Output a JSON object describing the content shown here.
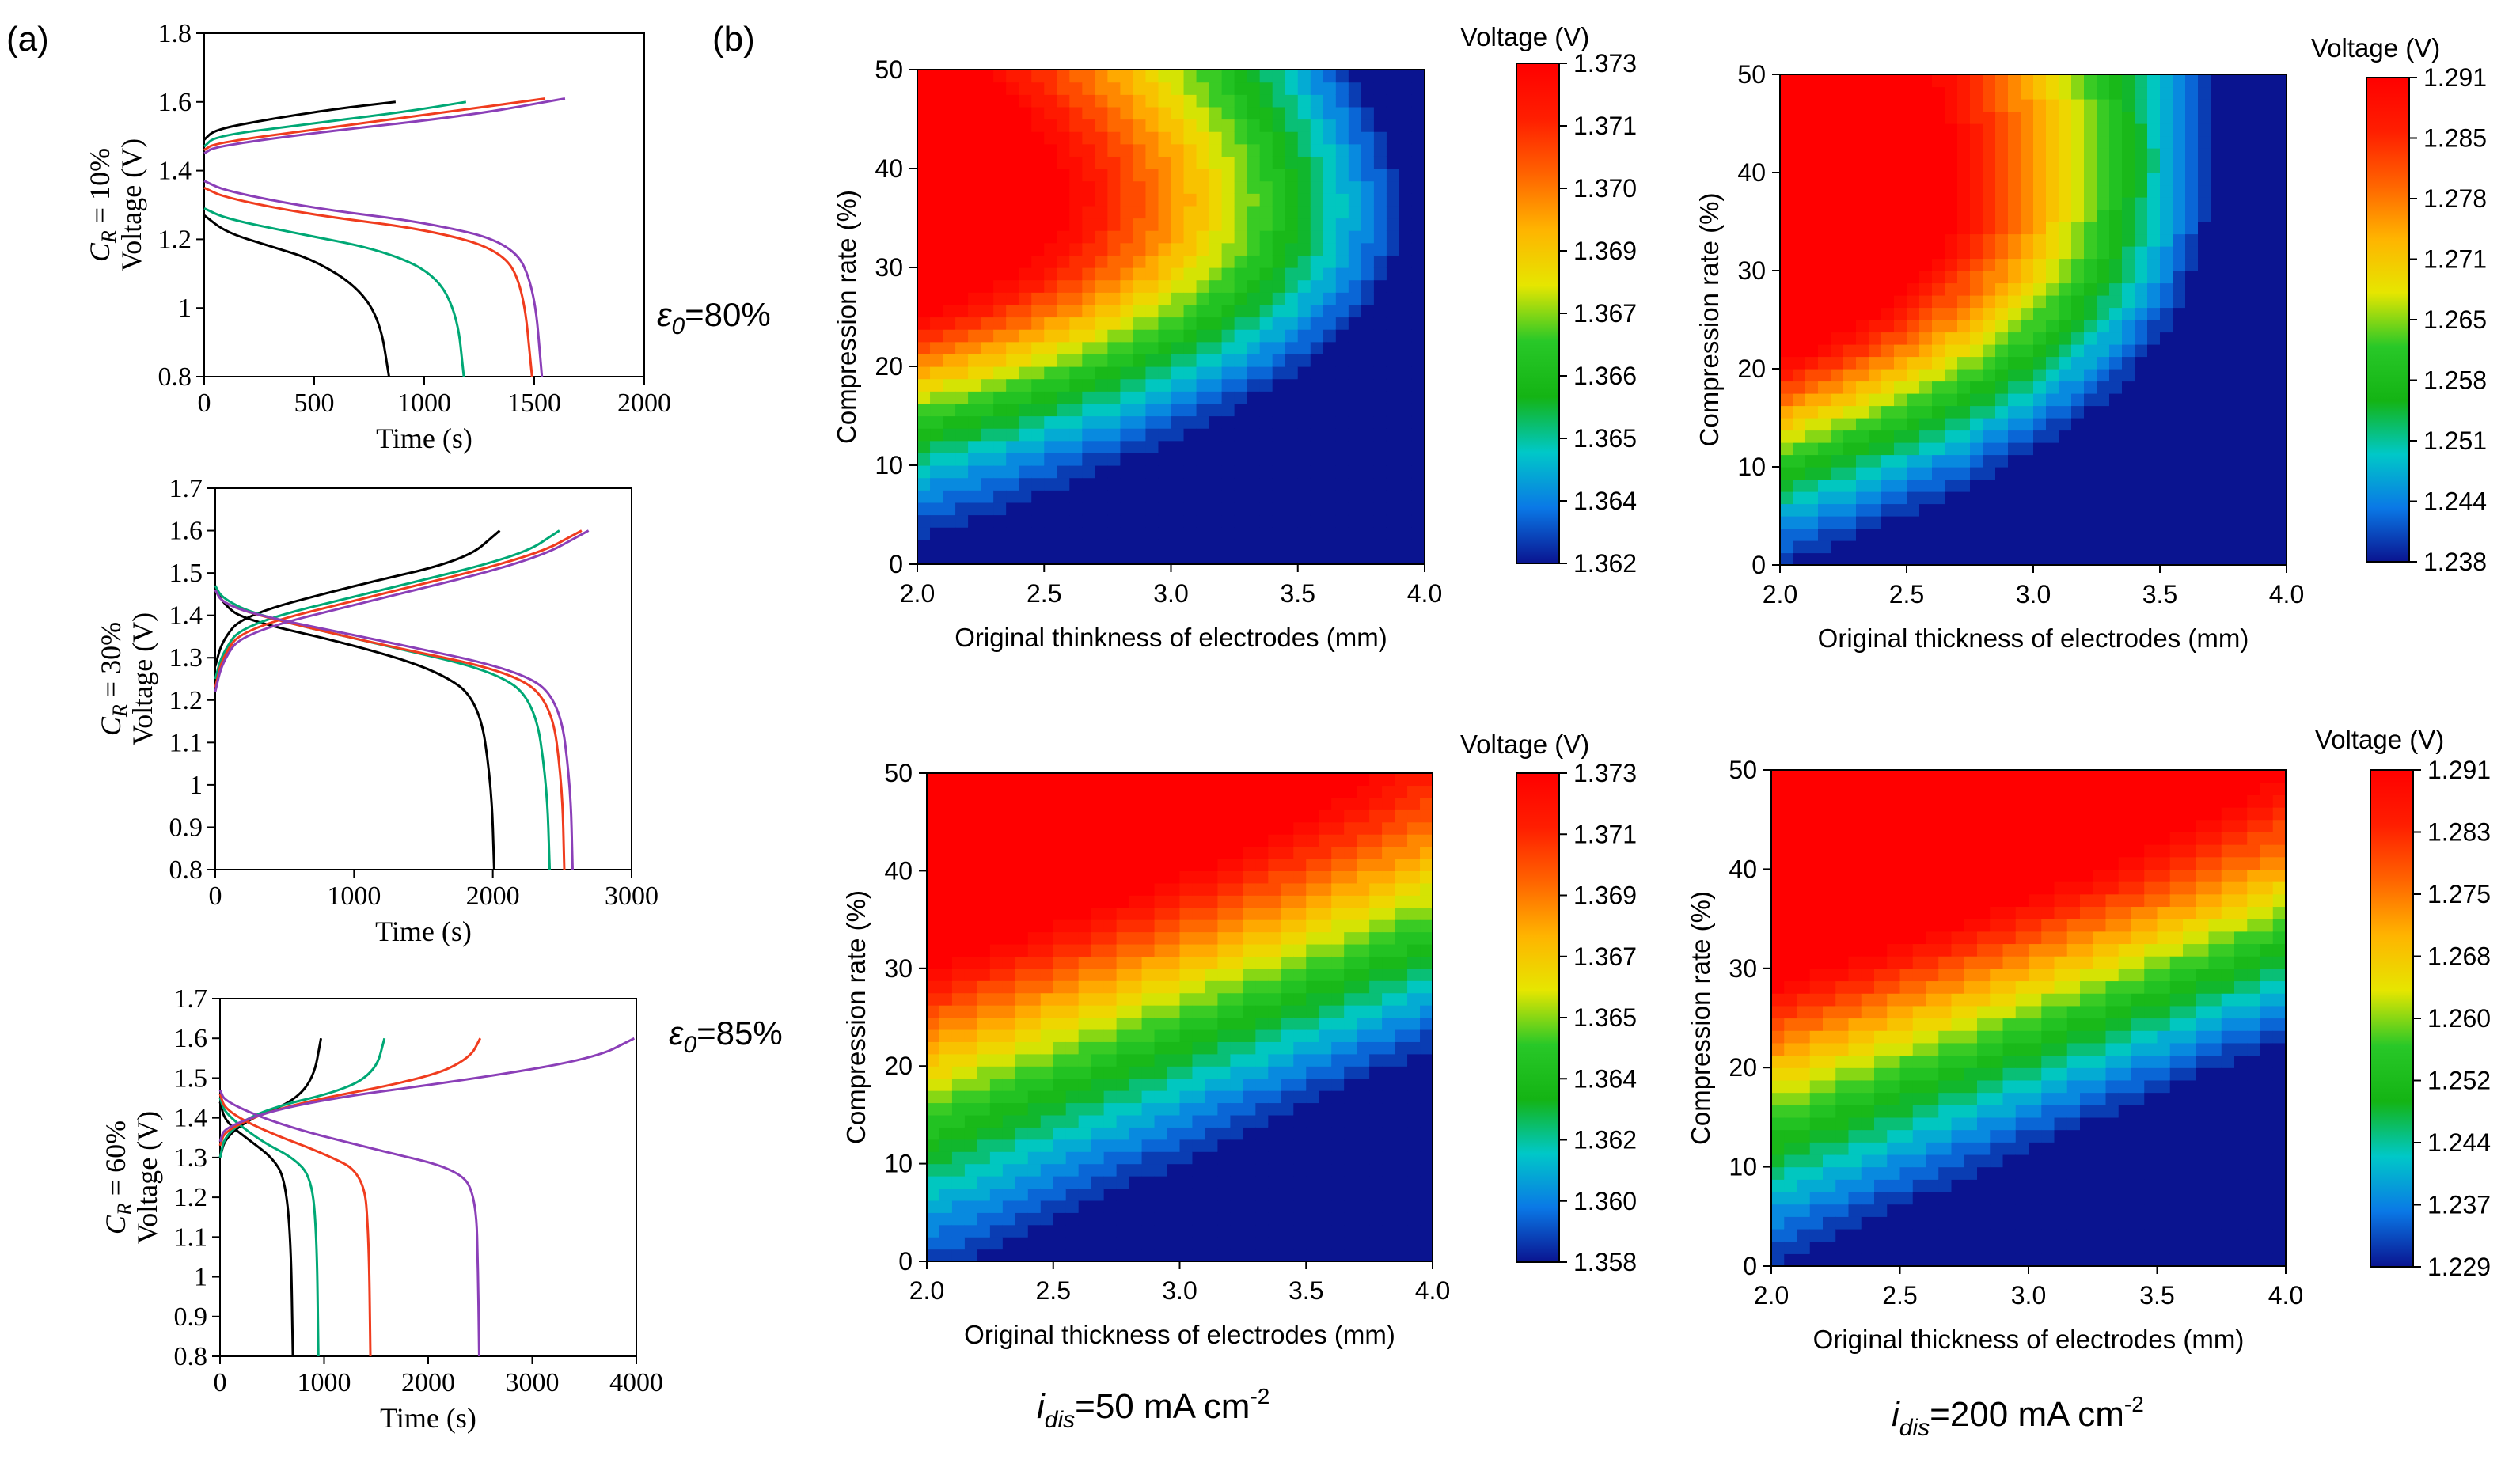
{
  "panel_labels": {
    "a": "(a)",
    "b": "(b)"
  },
  "annotations": {
    "eps80_sym": "ε",
    "eps80_sub": "0",
    "eps80_val": "=80%",
    "eps85_sym": "ε",
    "eps85_sub": "0",
    "eps85_val": "=85%",
    "i50_pre": "i",
    "i50_sub": "dis",
    "i50_mid": "=50 mA cm",
    "i50_sup": "-2",
    "i200_pre": "i",
    "i200_sub": "dis",
    "i200_mid": "=200 mA cm",
    "i200_sup": "-2"
  },
  "colors": {
    "black": "#000000",
    "green": "#00a875",
    "orange": "#f03c1e",
    "purple": "#8b3fb8",
    "contour_stops": [
      "#0a1490",
      "#0a78e6",
      "#00c8c8",
      "#14b414",
      "#28c828",
      "#e6e600",
      "#ffb400",
      "#ff6400",
      "#ff1e00",
      "#ff0000"
    ]
  },
  "chart_data": [
    {
      "id": "a1",
      "type": "line",
      "ylabel_cr": "C",
      "ylabel_cr_sub": "R",
      "ylabel_cr_val": " = 10%",
      "ylabel": "Voltage (V)",
      "xlabel": "Time (s)",
      "xlim": [
        0,
        2000
      ],
      "ylim": [
        0.8,
        1.8
      ],
      "xticks": [
        "0",
        "500",
        "1000",
        "1500",
        "2000"
      ],
      "yticks": [
        "0.8",
        "1",
        "1.2",
        "1.4",
        "1.6",
        "1.8"
      ],
      "series": [
        {
          "color": "#000000",
          "charge": [
            [
              0,
              1.49
            ],
            [
              50,
              1.52
            ],
            [
              300,
              1.55
            ],
            [
              600,
              1.58
            ],
            [
              870,
              1.6
            ]
          ],
          "discharge": [
            [
              0,
              1.27
            ],
            [
              100,
              1.22
            ],
            [
              300,
              1.18
            ],
            [
              500,
              1.14
            ],
            [
              700,
              1.06
            ],
            [
              800,
              0.96
            ],
            [
              840,
              0.8
            ]
          ]
        },
        {
          "color": "#00a875",
          "charge": [
            [
              0,
              1.47
            ],
            [
              50,
              1.5
            ],
            [
              400,
              1.53
            ],
            [
              900,
              1.57
            ],
            [
              1190,
              1.6
            ]
          ],
          "discharge": [
            [
              0,
              1.29
            ],
            [
              100,
              1.26
            ],
            [
              400,
              1.22
            ],
            [
              800,
              1.17
            ],
            [
              1050,
              1.1
            ],
            [
              1150,
              0.98
            ],
            [
              1180,
              0.8
            ]
          ]
        },
        {
          "color": "#f03c1e",
          "charge": [
            [
              0,
              1.46
            ],
            [
              50,
              1.48
            ],
            [
              500,
              1.52
            ],
            [
              1100,
              1.57
            ],
            [
              1550,
              1.61
            ]
          ],
          "discharge": [
            [
              0,
              1.35
            ],
            [
              100,
              1.32
            ],
            [
              500,
              1.27
            ],
            [
              1000,
              1.23
            ],
            [
              1350,
              1.17
            ],
            [
              1450,
              1.06
            ],
            [
              1490,
              0.8
            ]
          ]
        },
        {
          "color": "#8b3fb8",
          "charge": [
            [
              0,
              1.45
            ],
            [
              50,
              1.47
            ],
            [
              500,
              1.51
            ],
            [
              1200,
              1.56
            ],
            [
              1640,
              1.61
            ]
          ],
          "discharge": [
            [
              0,
              1.37
            ],
            [
              100,
              1.34
            ],
            [
              500,
              1.29
            ],
            [
              1000,
              1.25
            ],
            [
              1400,
              1.19
            ],
            [
              1500,
              1.06
            ],
            [
              1535,
              0.8
            ]
          ]
        }
      ]
    },
    {
      "id": "a2",
      "type": "line",
      "ylabel_cr": "C",
      "ylabel_cr_sub": "R",
      "ylabel_cr_val": " = 30%",
      "ylabel": "Voltage (V)",
      "xlabel": "Time (s)",
      "xlim": [
        0,
        3000
      ],
      "ylim": [
        0.8,
        1.7
      ],
      "xticks": [
        "0",
        "1000",
        "2000",
        "3000"
      ],
      "yticks": [
        "0.8",
        "0.9",
        "1",
        "1.1",
        "1.2",
        "1.3",
        "1.4",
        "1.5",
        "1.6",
        "1.7"
      ],
      "series": [
        {
          "color": "#000000",
          "charge": [
            [
              0,
              1.28
            ],
            [
              50,
              1.34
            ],
            [
              200,
              1.4
            ],
            [
              1000,
              1.47
            ],
            [
              1800,
              1.53
            ],
            [
              2050,
              1.6
            ]
          ],
          "discharge": [
            [
              0,
              1.47
            ],
            [
              50,
              1.43
            ],
            [
              200,
              1.39
            ],
            [
              1000,
              1.33
            ],
            [
              1600,
              1.27
            ],
            [
              1900,
              1.2
            ],
            [
              1990,
              1.0
            ],
            [
              2010,
              0.8
            ]
          ]
        },
        {
          "color": "#00a875",
          "charge": [
            [
              0,
              1.25
            ],
            [
              50,
              1.31
            ],
            [
              200,
              1.38
            ],
            [
              1200,
              1.46
            ],
            [
              2200,
              1.54
            ],
            [
              2480,
              1.6
            ]
          ],
          "discharge": [
            [
              0,
              1.47
            ],
            [
              50,
              1.44
            ],
            [
              300,
              1.4
            ],
            [
              1200,
              1.33
            ],
            [
              2000,
              1.27
            ],
            [
              2300,
              1.2
            ],
            [
              2390,
              1.0
            ],
            [
              2410,
              0.8
            ]
          ]
        },
        {
          "color": "#f03c1e",
          "charge": [
            [
              0,
              1.23
            ],
            [
              50,
              1.3
            ],
            [
              200,
              1.37
            ],
            [
              1200,
              1.45
            ],
            [
              2300,
              1.54
            ],
            [
              2640,
              1.6
            ]
          ],
          "discharge": [
            [
              0,
              1.46
            ],
            [
              50,
              1.43
            ],
            [
              300,
              1.4
            ],
            [
              1200,
              1.33
            ],
            [
              2100,
              1.27
            ],
            [
              2420,
              1.2
            ],
            [
              2500,
              1.0
            ],
            [
              2515,
              0.8
            ]
          ]
        },
        {
          "color": "#8b3fb8",
          "charge": [
            [
              0,
              1.22
            ],
            [
              50,
              1.29
            ],
            [
              200,
              1.36
            ],
            [
              1200,
              1.44
            ],
            [
              2300,
              1.53
            ],
            [
              2690,
              1.6
            ]
          ],
          "discharge": [
            [
              0,
              1.46
            ],
            [
              50,
              1.43
            ],
            [
              300,
              1.4
            ],
            [
              1200,
              1.34
            ],
            [
              2200,
              1.27
            ],
            [
              2480,
              1.2
            ],
            [
              2560,
              1.0
            ],
            [
              2575,
              0.8
            ]
          ]
        }
      ]
    },
    {
      "id": "a3",
      "type": "line",
      "ylabel_cr": "C",
      "ylabel_cr_sub": "R",
      "ylabel_cr_val": " = 60%",
      "ylabel": "Voltage (V)",
      "xlabel": "Time (s)",
      "xlim": [
        0,
        4000
      ],
      "ylim": [
        0.8,
        1.7
      ],
      "xticks": [
        "0",
        "1000",
        "2000",
        "3000",
        "4000"
      ],
      "yticks": [
        "0.8",
        "0.9",
        "1",
        "1.1",
        "1.2",
        "1.3",
        "1.4",
        "1.5",
        "1.6",
        "1.7"
      ],
      "series": [
        {
          "color": "#000000",
          "charge": [
            [
              0,
              1.3
            ],
            [
              50,
              1.35
            ],
            [
              300,
              1.4
            ],
            [
              700,
              1.44
            ],
            [
              900,
              1.5
            ],
            [
              970,
              1.6
            ]
          ],
          "discharge": [
            [
              0,
              1.44
            ],
            [
              50,
              1.39
            ],
            [
              300,
              1.34
            ],
            [
              500,
              1.3
            ],
            [
              620,
              1.25
            ],
            [
              680,
              1.1
            ],
            [
              700,
              0.8
            ]
          ]
        },
        {
          "color": "#00a875",
          "charge": [
            [
              0,
              1.3
            ],
            [
              50,
              1.36
            ],
            [
              400,
              1.42
            ],
            [
              1200,
              1.47
            ],
            [
              1500,
              1.52
            ],
            [
              1580,
              1.6
            ]
          ],
          "discharge": [
            [
              0,
              1.45
            ],
            [
              50,
              1.41
            ],
            [
              400,
              1.34
            ],
            [
              700,
              1.3
            ],
            [
              880,
              1.25
            ],
            [
              930,
              1.1
            ],
            [
              945,
              0.8
            ]
          ]
        },
        {
          "color": "#f03c1e",
          "charge": [
            [
              0,
              1.33
            ],
            [
              50,
              1.37
            ],
            [
              600,
              1.43
            ],
            [
              2000,
              1.5
            ],
            [
              2400,
              1.55
            ],
            [
              2500,
              1.6
            ]
          ],
          "discharge": [
            [
              0,
              1.46
            ],
            [
              50,
              1.42
            ],
            [
              400,
              1.37
            ],
            [
              1000,
              1.31
            ],
            [
              1380,
              1.26
            ],
            [
              1430,
              1.1
            ],
            [
              1445,
              0.8
            ]
          ]
        },
        {
          "color": "#8b3fb8",
          "charge": [
            [
              0,
              1.34
            ],
            [
              50,
              1.38
            ],
            [
              800,
              1.44
            ],
            [
              2500,
              1.5
            ],
            [
              3600,
              1.55
            ],
            [
              3980,
              1.6
            ]
          ],
          "discharge": [
            [
              0,
              1.47
            ],
            [
              50,
              1.44
            ],
            [
              600,
              1.38
            ],
            [
              1500,
              1.32
            ],
            [
              2300,
              1.27
            ],
            [
              2460,
              1.2
            ],
            [
              2480,
              1.0
            ],
            [
              2490,
              0.8
            ]
          ]
        }
      ]
    },
    {
      "id": "b1",
      "type": "heatmap",
      "xlabel": "Original thinkness of electrodes (mm)",
      "ylabel": "Compression rate (%)",
      "xlim": [
        2.0,
        4.0
      ],
      "ylim": [
        0,
        50
      ],
      "xticks": [
        "2.0",
        "2.5",
        "3.0",
        "3.5",
        "4.0"
      ],
      "yticks": [
        "0",
        "10",
        "20",
        "30",
        "40",
        "50"
      ],
      "colorbar_title": "Voltage (V)",
      "colorbar_ticks": [
        "1.373",
        "1.371",
        "1.370",
        "1.369",
        "1.367",
        "1.366",
        "1.365",
        "1.364",
        "1.362"
      ],
      "vmin": 1.362,
      "vmax": 1.373,
      "model": {
        "a": 1.3614,
        "b": 0.0028,
        "c": 0.0094,
        "y0": 34,
        "w": 18,
        "x0": 2.0,
        "t": 0.6,
        "k": 0.0045
      }
    },
    {
      "id": "b2",
      "type": "heatmap",
      "xlabel": "Original thickness of electrodes (mm)",
      "ylabel": "Compression rate (%)",
      "xlim": [
        2.0,
        4.0
      ],
      "ylim": [
        0,
        50
      ],
      "xticks": [
        "2.0",
        "2.5",
        "3.0",
        "3.5",
        "4.0"
      ],
      "yticks": [
        "0",
        "10",
        "20",
        "30",
        "40",
        "50"
      ],
      "colorbar_title": "Voltage (V)",
      "colorbar_ticks": [
        "1.291",
        "1.285",
        "1.278",
        "1.271",
        "1.265",
        "1.258",
        "1.251",
        "1.244",
        "1.238"
      ],
      "vmin": 1.238,
      "vmax": 1.291,
      "model": {
        "a": 1.236,
        "b": 0.018,
        "c": 0.047,
        "y0": 33,
        "w": 20,
        "x0": 2.0,
        "t": 0.9,
        "k": 0.022
      }
    },
    {
      "id": "b3",
      "type": "heatmap",
      "xlabel": "Original thickness of electrodes (mm)",
      "ylabel": "Compression rate (%)",
      "xlim": [
        2.0,
        4.0
      ],
      "ylim": [
        0,
        50
      ],
      "xticks": [
        "2.0",
        "2.5",
        "3.0",
        "3.5",
        "4.0"
      ],
      "yticks": [
        "0",
        "10",
        "20",
        "30",
        "40",
        "50"
      ],
      "colorbar_title": "Voltage (V)",
      "colorbar_ticks": [
        "1.373",
        "1.371",
        "1.369",
        "1.367",
        "1.365",
        "1.364",
        "1.362",
        "1.360",
        "1.358"
      ],
      "vmin": 1.358,
      "vmax": 1.373,
      "model": {
        "a": 1.3585,
        "b": 0.0048,
        "c": 0.0115,
        "y0": 55,
        "w": 30,
        "x0": 2.0,
        "t": 0.0,
        "k": 0.0
      }
    },
    {
      "id": "b4",
      "type": "heatmap",
      "xlabel": "Original thickness of electrodes (mm)",
      "ylabel": "Compression rate (%)",
      "xlim": [
        2.0,
        4.0
      ],
      "ylim": [
        0,
        50
      ],
      "xticks": [
        "2.0",
        "2.5",
        "3.0",
        "3.5",
        "4.0"
      ],
      "yticks": [
        "0",
        "10",
        "20",
        "30",
        "40",
        "50"
      ],
      "colorbar_title": "Voltage (V)",
      "colorbar_ticks": [
        "1.291",
        "1.283",
        "1.275",
        "1.268",
        "1.260",
        "1.252",
        "1.244",
        "1.237",
        "1.229"
      ],
      "vmin": 1.229,
      "vmax": 1.291,
      "model": {
        "a": 1.228,
        "b": 0.022,
        "c": 0.056,
        "y0": 55,
        "w": 30,
        "x0": 2.0,
        "t": 0.0,
        "k": 0.0
      }
    }
  ]
}
